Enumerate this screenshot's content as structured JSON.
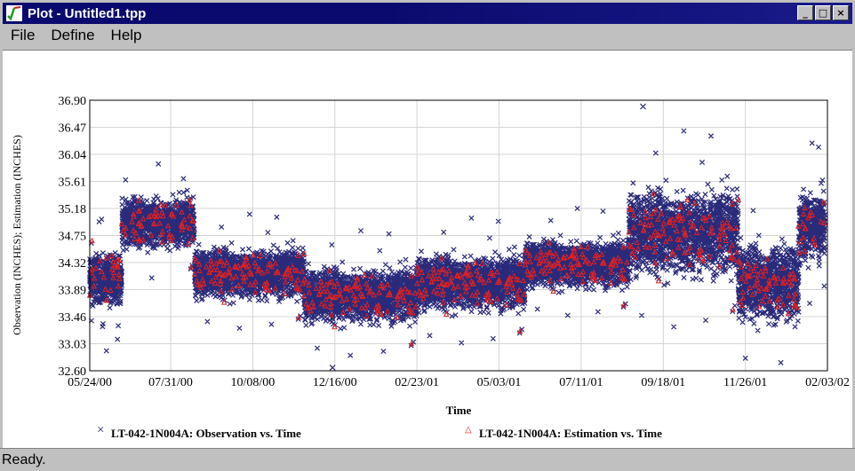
{
  "window": {
    "title": "Plot - Untitled1.tpp",
    "controls": [
      "minimize",
      "maximize",
      "close"
    ]
  },
  "menubar": {
    "items": [
      "File",
      "Define",
      "Help"
    ]
  },
  "statusbar": {
    "text": "Ready."
  },
  "chart_data": {
    "type": "scatter",
    "title": "",
    "xlabel": "Time",
    "ylabel": "Observation (INCHES); Estimation (INCHES)",
    "x_tick_labels": [
      "05/24/00",
      "07/31/00",
      "10/08/00",
      "12/16/00",
      "02/23/01",
      "05/03/01",
      "07/11/01",
      "09/18/01",
      "11/26/01",
      "02/03/02"
    ],
    "y_tick_labels": [
      "36.90",
      "36.47",
      "36.04",
      "35.61",
      "35.18",
      "34.75",
      "34.32",
      "33.89",
      "33.46",
      "33.03",
      "32.60"
    ],
    "ylim": [
      32.6,
      36.9
    ],
    "xlim": [
      "05/24/00",
      "02/03/02"
    ],
    "grid": true,
    "legend": "bottom",
    "series": [
      {
        "name": "LT-042-1N004A: Observation vs. Time",
        "marker": "x",
        "color": "#2a2a7a",
        "approx_level_segments": [
          {
            "from": "05/24/00",
            "to": "06/20/00",
            "mean": 34.05,
            "spread": 0.35
          },
          {
            "from": "06/20/00",
            "to": "08/20/00",
            "mean": 34.95,
            "spread": 0.32
          },
          {
            "from": "08/20/00",
            "to": "11/20/00",
            "mean": 34.15,
            "spread": 0.32
          },
          {
            "from": "11/20/00",
            "to": "02/23/01",
            "mean": 33.8,
            "spread": 0.35
          },
          {
            "from": "02/23/01",
            "to": "05/25/01",
            "mean": 34.0,
            "spread": 0.35
          },
          {
            "from": "05/25/01",
            "to": "08/20/01",
            "mean": 34.3,
            "spread": 0.3
          },
          {
            "from": "08/20/01",
            "to": "11/20/01",
            "mean": 34.8,
            "spread": 0.55
          },
          {
            "from": "11/20/01",
            "to": "01/10/02",
            "mean": 34.0,
            "spread": 0.5
          },
          {
            "from": "01/10/02",
            "to": "02/01/02",
            "mean": 34.9,
            "spread": 0.45
          }
        ],
        "extremes": {
          "max": 36.8,
          "min": 32.65
        }
      },
      {
        "name": "LT-042-1N004A: Estimation vs. Time",
        "marker": "triangle",
        "color": "#e02020"
      }
    ]
  }
}
